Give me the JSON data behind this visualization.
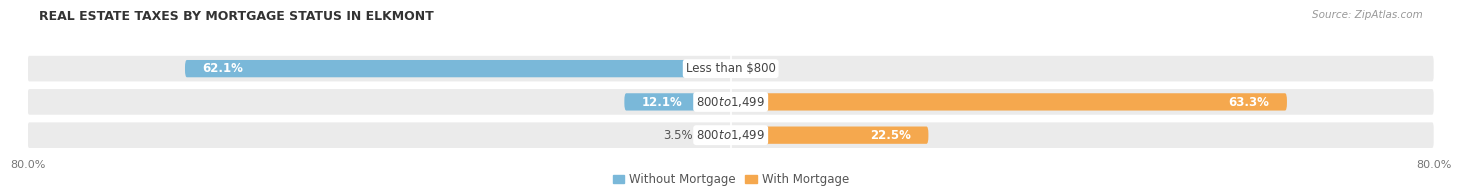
{
  "title": "REAL ESTATE TAXES BY MORTGAGE STATUS IN ELKMONT",
  "source": "Source: ZipAtlas.com",
  "rows": [
    {
      "label": "Less than $800",
      "without": 62.1,
      "with": 0.0
    },
    {
      "label": "$800 to $1,499",
      "without": 12.1,
      "with": 63.3
    },
    {
      "label": "$800 to $1,499",
      "without": 3.5,
      "with": 22.5
    }
  ],
  "color_without": "#7ab8d9",
  "color_with": "#f5a84e",
  "color_with_light": "#f9c98a",
  "bar_height": 0.52,
  "xlim": [
    -80,
    80
  ],
  "xticks": [
    -80,
    80
  ],
  "background_row_light": "#ebebeb",
  "background_row_dark": "#e0e0e0",
  "background_fig": "#ffffff",
  "legend_labels": [
    "Without Mortgage",
    "With Mortgage"
  ],
  "label_fontsize": 8.5,
  "title_fontsize": 9.0,
  "source_fontsize": 7.5,
  "tick_fontsize": 8.0
}
